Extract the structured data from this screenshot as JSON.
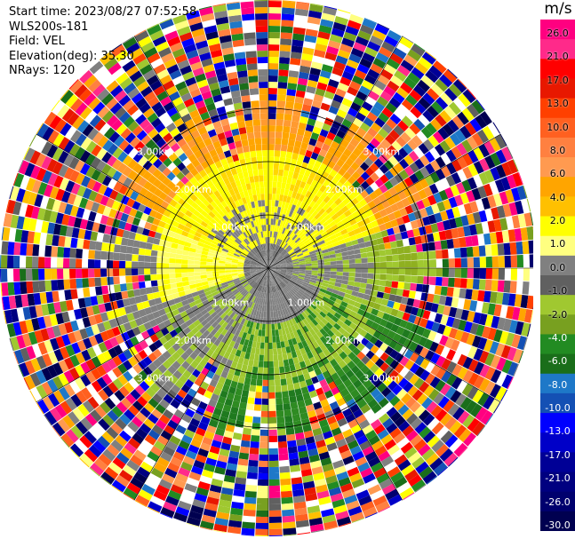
{
  "header": {
    "start_time": "Start time: 2023/08/27 07:52:58",
    "station": "WLS200s-181",
    "field": "Field: VEL",
    "elevation": "Elevation(deg): 35.30",
    "nrays": "NRays: 120"
  },
  "chart_data": {
    "type": "heatmap",
    "projection": "polar-ppi",
    "variable": "VEL",
    "units": "m/s",
    "n_rays": 120,
    "elevation_deg": 35.3,
    "range_rings_km": [
      1.0,
      2.0,
      3.0
    ],
    "ring_labels": [
      "1.00km",
      "2.00km",
      "3.00km"
    ],
    "max_range_km": 5.0,
    "colorbar": {
      "title": "m/s",
      "ticks": [
        "26.0",
        "21.0",
        "17.0",
        "13.0",
        "10.0",
        "8.0",
        "6.0",
        "4.0",
        "2.0",
        "1.0",
        "0.0",
        "-1.0",
        "-2.0",
        "-4.0",
        "-6.0",
        "-8.0",
        "-10.0",
        "-13.0",
        "-17.0",
        "-21.0",
        "-26.0",
        "-30.0"
      ],
      "colors": [
        "#ff0080",
        "#ff2a8a",
        "#ff0000",
        "#e81800",
        "#ff4000",
        "#ff6020",
        "#ff8040",
        "#ff9a50",
        "#ffa500",
        "#ffc000",
        "#ffff00",
        "#ffff80",
        "#808080",
        "#606060",
        "#a0c830",
        "#78a020",
        "#228b22",
        "#1a6e1a",
        "#1e78c8",
        "#1450b4",
        "#0000ff",
        "#0000c8",
        "#000096",
        "#000080",
        "#00006e",
        "#000050"
      ]
    },
    "velocity_pattern": {
      "near_core": "gray (0 to -1 m/s)",
      "north_sector": "yellow (1 to 4 m/s)",
      "northwest_sector": "orange (4 to 8 m/s)",
      "southeast_sector": "green (-2 to -6 m/s)",
      "south_sector": "dark green (-6 to -8 m/s)",
      "outer_ranges": "noise, all colors"
    }
  }
}
